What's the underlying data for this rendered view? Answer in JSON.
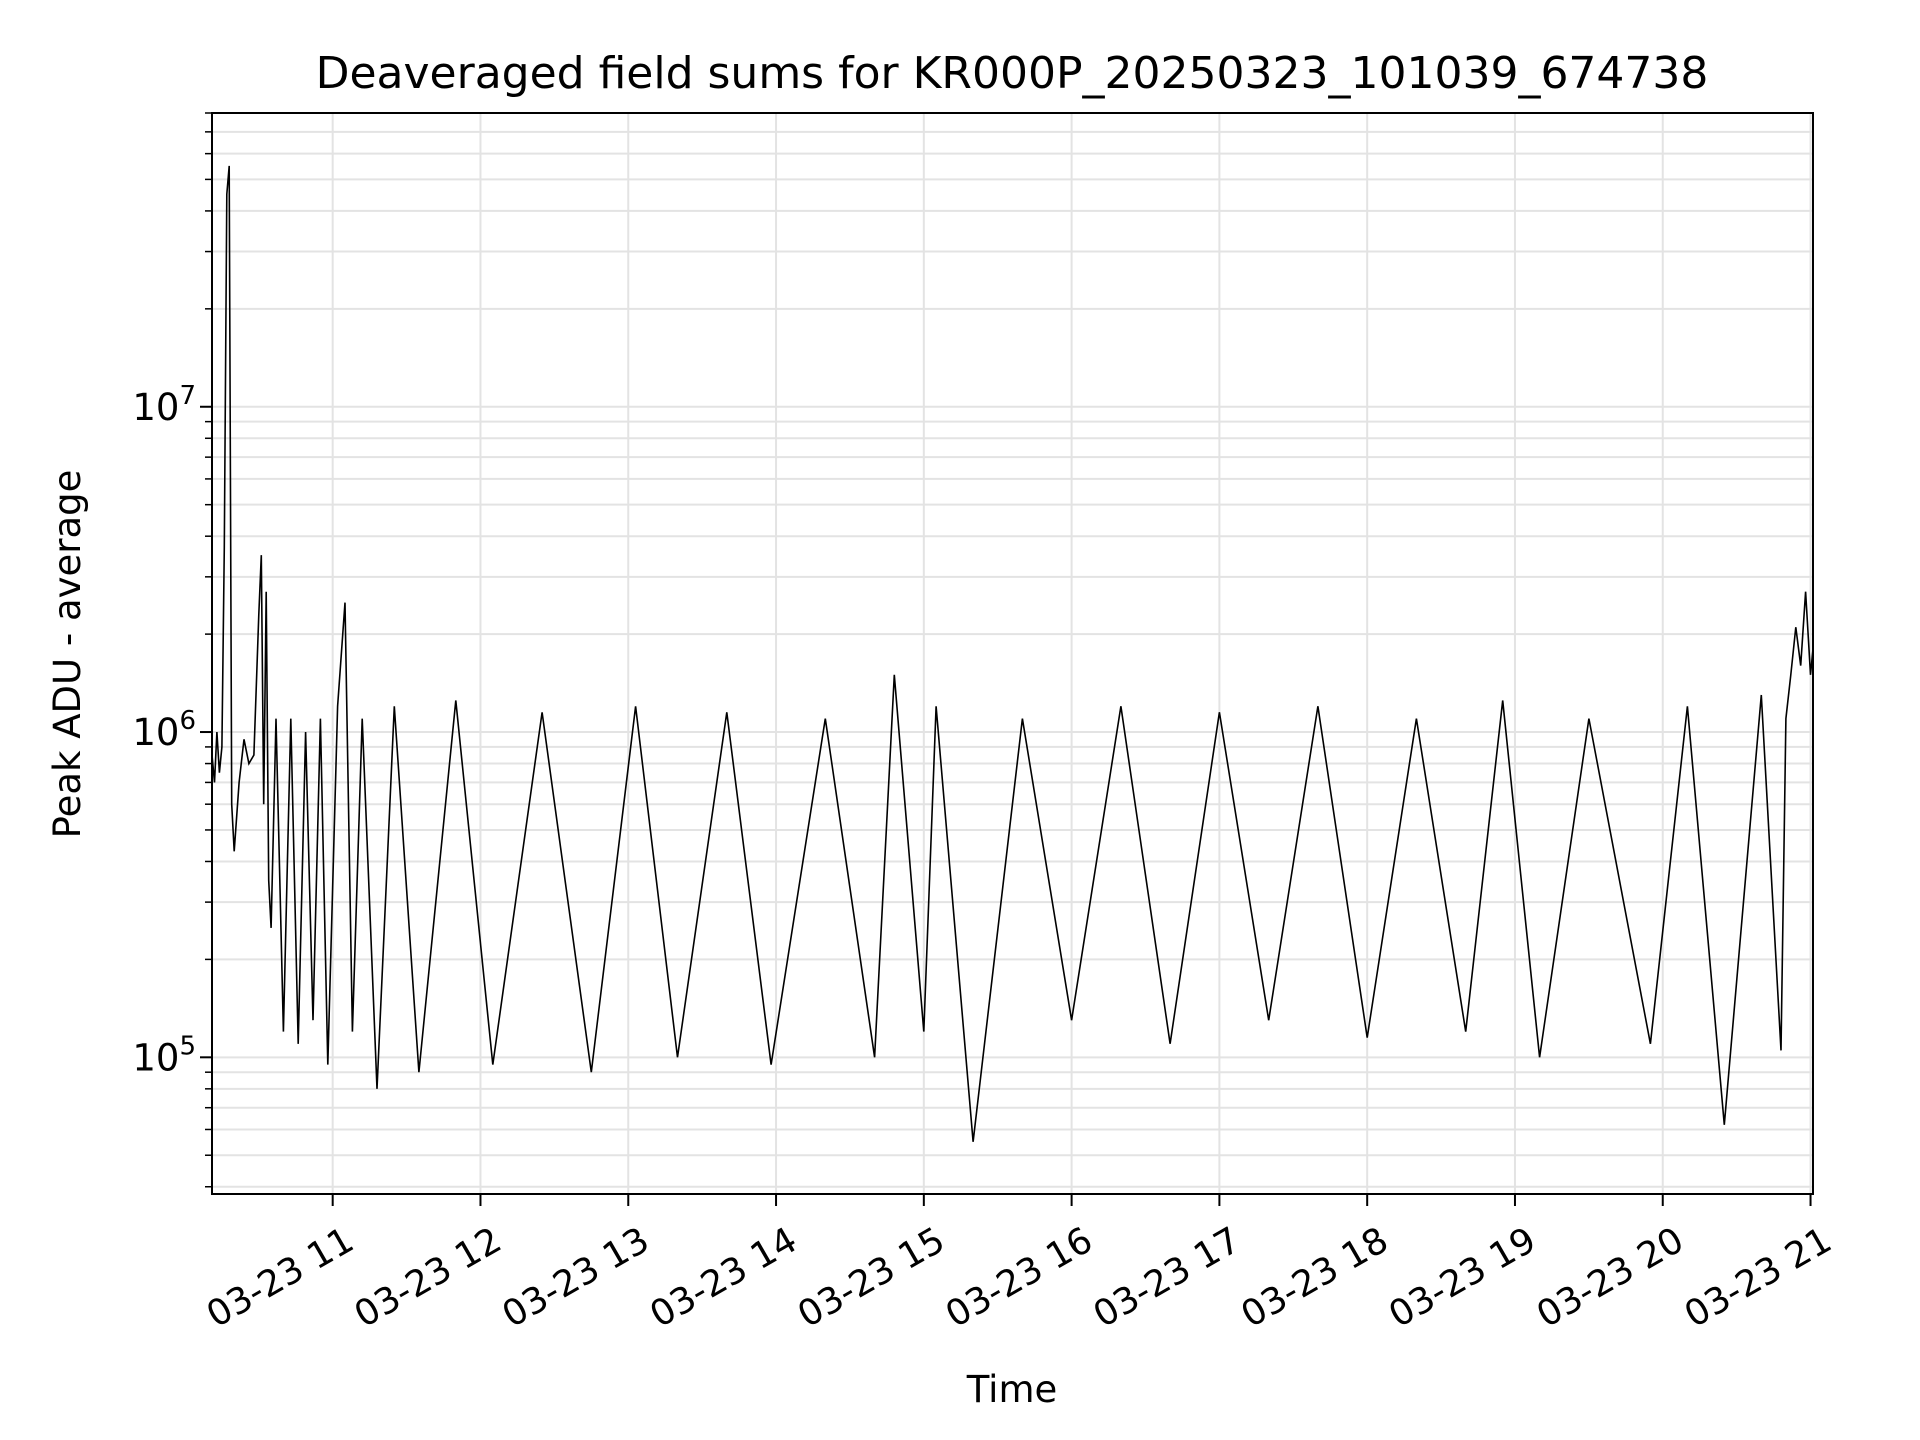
{
  "chart_data": {
    "type": "line",
    "title": "Deaveraged field sums for KR000P_20250323_101039_674738",
    "xlabel": "Time",
    "ylabel": "Peak ADU - average",
    "x_scale": "time",
    "y_scale": "log",
    "xlim": [
      "03-23 10:11",
      "03-23 21:01"
    ],
    "ylim": [
      38000,
      80000000
    ],
    "grid": true,
    "x_ticks": [
      {
        "value": "03-23 11:00",
        "label": "03-23 11"
      },
      {
        "value": "03-23 12:00",
        "label": "03-23 12"
      },
      {
        "value": "03-23 13:00",
        "label": "03-23 13"
      },
      {
        "value": "03-23 14:00",
        "label": "03-23 14"
      },
      {
        "value": "03-23 15:00",
        "label": "03-23 15"
      },
      {
        "value": "03-23 16:00",
        "label": "03-23 16"
      },
      {
        "value": "03-23 17:00",
        "label": "03-23 17"
      },
      {
        "value": "03-23 18:00",
        "label": "03-23 18"
      },
      {
        "value": "03-23 19:00",
        "label": "03-23 19"
      },
      {
        "value": "03-23 20:00",
        "label": "03-23 20"
      },
      {
        "value": "03-23 21:00",
        "label": "03-23 21"
      }
    ],
    "y_ticks": [
      {
        "value": 100000,
        "base": "10",
        "exp": "5"
      },
      {
        "value": 1000000,
        "base": "10",
        "exp": "6"
      },
      {
        "value": 10000000,
        "base": "10",
        "exp": "7"
      }
    ],
    "series": [
      {
        "color": "#000000",
        "x": [
          "03-23 10:11",
          "03-23 10:12",
          "03-23 10:13",
          "03-23 10:14",
          "03-23 10:15",
          "03-23 10:16",
          "03-23 10:17",
          "03-23 10:18",
          "03-23 10:19",
          "03-23 10:20",
          "03-23 10:22",
          "03-23 10:24",
          "03-23 10:26",
          "03-23 10:28",
          "03-23 10:30",
          "03-23 10:31",
          "03-23 10:32",
          "03-23 10:33",
          "03-23 10:34",
          "03-23 10:35",
          "03-23 10:37",
          "03-23 10:40",
          "03-23 10:43",
          "03-23 10:46",
          "03-23 10:49",
          "03-23 10:52",
          "03-23 10:55",
          "03-23 10:58",
          "03-23 11:02",
          "03-23 11:05",
          "03-23 11:08",
          "03-23 11:12",
          "03-23 11:18",
          "03-23 11:25",
          "03-23 11:35",
          "03-23 11:50",
          "03-23 12:05",
          "03-23 12:25",
          "03-23 12:45",
          "03-23 13:03",
          "03-23 13:20",
          "03-23 13:40",
          "03-23 13:58",
          "03-23 14:20",
          "03-23 14:40",
          "03-23 14:48",
          "03-23 15:00",
          "03-23 15:05",
          "03-23 15:20",
          "03-23 15:40",
          "03-23 16:00",
          "03-23 16:20",
          "03-23 16:40",
          "03-23 17:00",
          "03-23 17:20",
          "03-23 17:40",
          "03-23 18:00",
          "03-23 18:20",
          "03-23 18:40",
          "03-23 18:55",
          "03-23 19:10",
          "03-23 19:30",
          "03-23 19:55",
          "03-23 20:10",
          "03-23 20:25",
          "03-23 20:40",
          "03-23 20:48",
          "03-23 20:50",
          "03-23 20:52",
          "03-23 20:54",
          "03-23 20:56",
          "03-23 20:58",
          "03-23 21:00",
          "03-23 21:01"
        ],
        "y": [
          850000,
          700000,
          1000000,
          750000,
          900000,
          3700000,
          45000000,
          55000000,
          600000,
          430000,
          700000,
          950000,
          800000,
          850000,
          2300000,
          3500000,
          600000,
          2700000,
          350000,
          250000,
          1100000,
          120000,
          1100000,
          110000,
          1000000,
          130000,
          1100000,
          95000,
          1200000,
          2500000,
          120000,
          1100000,
          80000,
          1200000,
          90000,
          1250000,
          95000,
          1150000,
          90000,
          1200000,
          100000,
          1150000,
          95000,
          1100000,
          100000,
          1500000,
          120000,
          1200000,
          55000,
          1100000,
          130000,
          1200000,
          110000,
          1150000,
          130000,
          1200000,
          115000,
          1100000,
          120000,
          1250000,
          100000,
          1100000,
          110000,
          1200000,
          62000,
          1300000,
          105000,
          1100000,
          1500000,
          2100000,
          1600000,
          2700000,
          1500000,
          1800000
        ]
      }
    ]
  }
}
